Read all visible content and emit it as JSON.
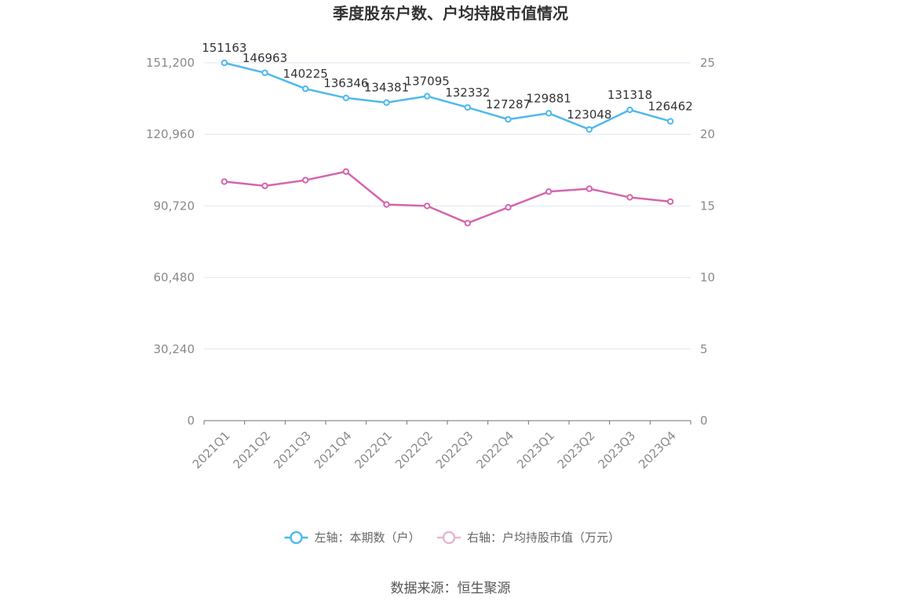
{
  "chart_data": {
    "type": "line",
    "title": "季度股东户数、户均持股市值情况",
    "categories": [
      "2021Q1",
      "2021Q2",
      "2021Q3",
      "2021Q4",
      "2022Q1",
      "2022Q2",
      "2022Q3",
      "2022Q4",
      "2023Q1",
      "2023Q2",
      "2023Q3",
      "2023Q4"
    ],
    "series": [
      {
        "name": "左轴：本期数（户）",
        "axis": "left",
        "color": "#4fb9ec",
        "values": [
          151163,
          146963,
          140225,
          136346,
          134381,
          137095,
          132332,
          127287,
          129881,
          123048,
          131318,
          126462
        ],
        "labels": [
          "151163",
          "146963",
          "140225",
          "136346",
          "134381",
          "137095",
          "132332",
          "127287",
          "129881",
          "123048",
          "131318",
          "126462"
        ]
      },
      {
        "name": "右轴：户均持股市值（万元）",
        "axis": "right",
        "color": "#d465ad",
        "values": [
          16.7,
          16.4,
          16.8,
          17.4,
          15.1,
          15.0,
          13.8,
          14.9,
          16.0,
          16.2,
          15.6,
          15.3
        ]
      }
    ],
    "left_axis": {
      "ylim": [
        0,
        151200
      ],
      "ticks": [
        0,
        30240,
        60480,
        90720,
        120960,
        151200
      ],
      "tick_labels": [
        "0",
        "30,240",
        "60,480",
        "90,720",
        "120,960",
        "151,200"
      ]
    },
    "right_axis": {
      "ylim": [
        0,
        25
      ],
      "ticks": [
        0,
        5,
        10,
        15,
        20,
        25
      ],
      "tick_labels": [
        "0",
        "5",
        "10",
        "15",
        "20",
        "25"
      ]
    },
    "grid": true,
    "legend_position": "bottom"
  },
  "source": "数据来源：恒生聚源",
  "colors": {
    "grid": "#e0e6f1",
    "axis": "#6e7079",
    "tick_text": "#8a8a8a"
  }
}
